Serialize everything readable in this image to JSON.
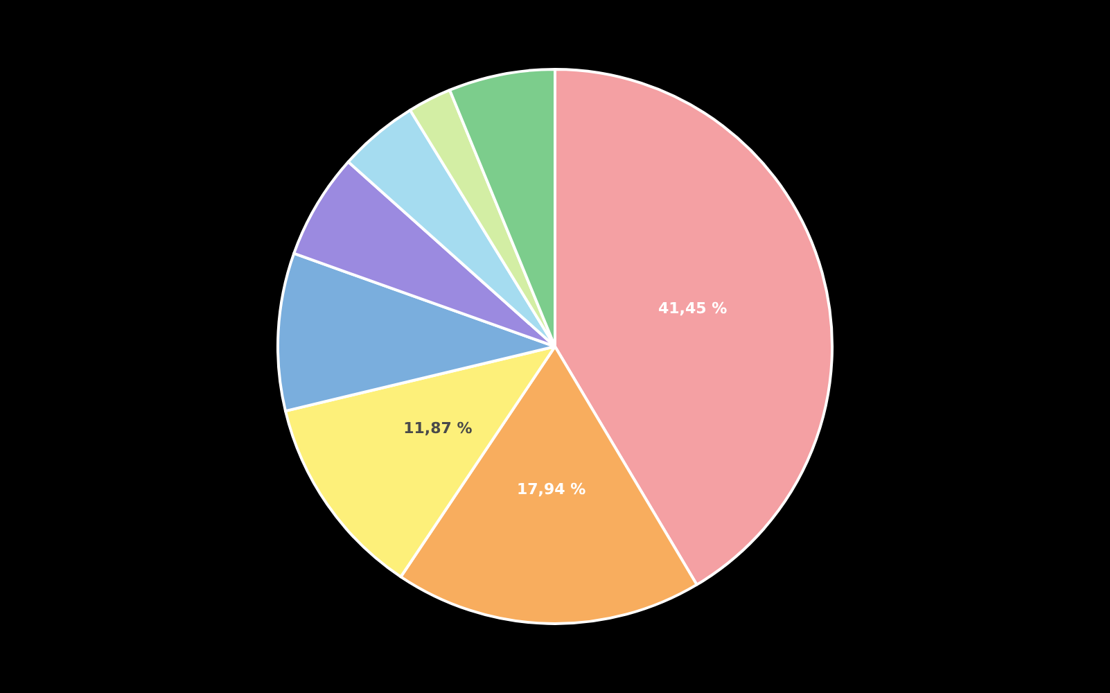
{
  "chart_data": {
    "type": "pie",
    "categories": [
      null,
      null,
      null,
      null,
      null,
      null,
      null,
      null
    ],
    "values": [
      41.45,
      17.94,
      11.87,
      9.19,
      6.15,
      4.65,
      2.55,
      6.2
    ],
    "colors": [
      "#f4a0a3",
      "#f8ad5e",
      "#fdf07a",
      "#7aaedd",
      "#9b8ae0",
      "#a5dcf0",
      "#d3eea4",
      "#7ccd8c"
    ],
    "value_labels": [
      "41,45 %",
      "17,94 %",
      "11,87 %",
      null,
      null,
      null,
      null,
      null
    ]
  }
}
